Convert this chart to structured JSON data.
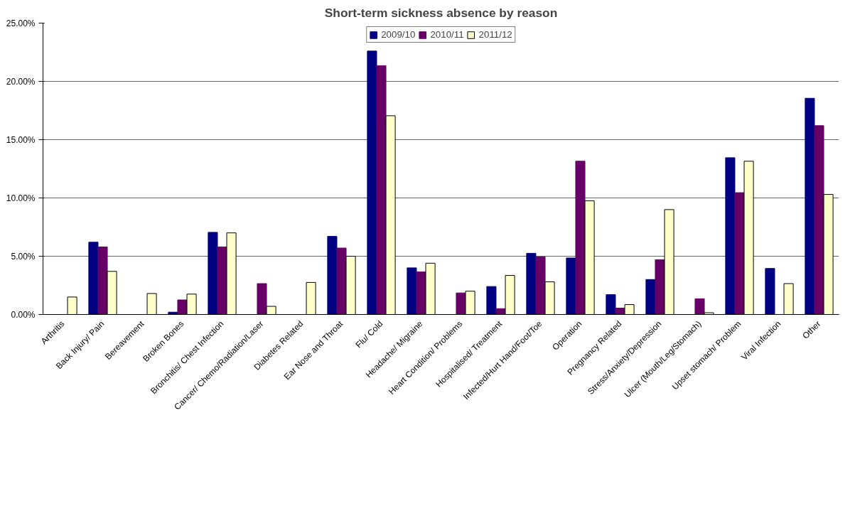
{
  "chart_data": {
    "type": "bar",
    "title": "Short-term sickness absence by reason",
    "categories": [
      "Arthritis",
      "Back Injury/ Pain",
      "Bereavement",
      "Broken Bones",
      "Bronchitis/ Chest Infection",
      "Cancer/ Chemo/Radiation/Laser",
      "Diabetes Related",
      "Ear Nose and Throat",
      "Flu/ Cold",
      "Headache/ Migraine",
      "Heart Condition/ Problems",
      "Hospitalised/ Treatment",
      "Infected/Hurt Hand/Foot/Toe",
      "Operation",
      "Pregnancy Related",
      "Stress/Anxiety/Depression",
      "Ulcer (Mouth/Leg/Stomach)",
      "Upset stomach/ Problem",
      "Viral Infection",
      "Other"
    ],
    "series": [
      {
        "name": "2009/10",
        "color": "#000080",
        "values": [
          0,
          6.2,
          0,
          0.2,
          7.05,
          0,
          0,
          6.7,
          22.6,
          4.0,
          0,
          2.4,
          5.25,
          4.85,
          1.7,
          3.0,
          0,
          13.45,
          3.95,
          18.55
        ]
      },
      {
        "name": "2010/11",
        "color": "#660066",
        "values": [
          0,
          5.8,
          0,
          1.25,
          5.8,
          2.65,
          0,
          5.7,
          21.35,
          3.65,
          1.85,
          0.5,
          4.95,
          13.15,
          0.55,
          4.7,
          1.35,
          10.45,
          0,
          16.2
        ]
      },
      {
        "name": "2011/12",
        "color": "#ffffcc",
        "values": [
          1.5,
          3.7,
          1.8,
          1.75,
          7.0,
          0.7,
          2.75,
          5.0,
          17.05,
          4.4,
          2.0,
          3.35,
          2.8,
          9.75,
          0.85,
          9.0,
          0.15,
          13.15,
          2.65,
          10.3
        ]
      }
    ],
    "ylim": [
      0,
      25
    ],
    "yticks": [
      {
        "value": 0,
        "label": "0.00%"
      },
      {
        "value": 5,
        "label": "5.00%"
      },
      {
        "value": 10,
        "label": "10.00%"
      },
      {
        "value": 15,
        "label": "15.00%"
      },
      {
        "value": 20,
        "label": "20.00%"
      },
      {
        "value": 25,
        "label": "25.00%"
      }
    ],
    "grid": "y",
    "legend": "top"
  }
}
